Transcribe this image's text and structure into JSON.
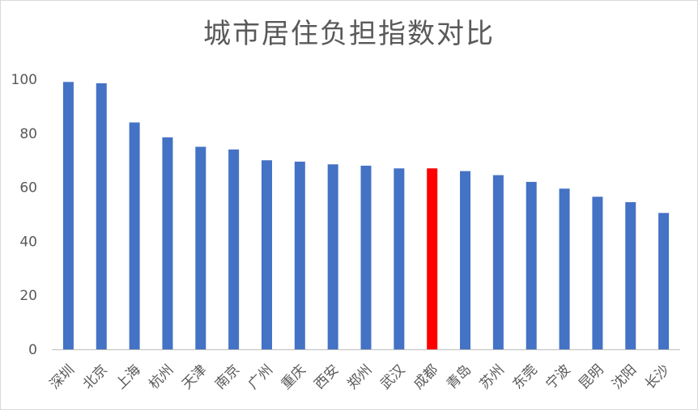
{
  "chart_data": {
    "type": "bar",
    "title": "城市居住负担指数对比",
    "xlabel": "",
    "ylabel": "",
    "ylim": [
      0,
      100
    ],
    "yticks": [
      0,
      20,
      40,
      60,
      80,
      100
    ],
    "grid": false,
    "legend": "none",
    "categories": [
      "深圳",
      "北京",
      "上海",
      "杭州",
      "天津",
      "南京",
      "广州",
      "重庆",
      "西安",
      "郑州",
      "武汉",
      "成都",
      "青岛",
      "苏州",
      "东莞",
      "宁波",
      "昆明",
      "沈阳",
      "长沙"
    ],
    "values": [
      99,
      98.5,
      84,
      78.5,
      75,
      74,
      70,
      69.5,
      68.5,
      68,
      67,
      67,
      66,
      64.5,
      62,
      59.5,
      56.5,
      54.5,
      50.5
    ],
    "colors": {
      "default": "#4472C4",
      "highlight": "#FF0000",
      "highlight_category": "成都",
      "axis": "#bfbfbf",
      "text": "#595959"
    }
  }
}
